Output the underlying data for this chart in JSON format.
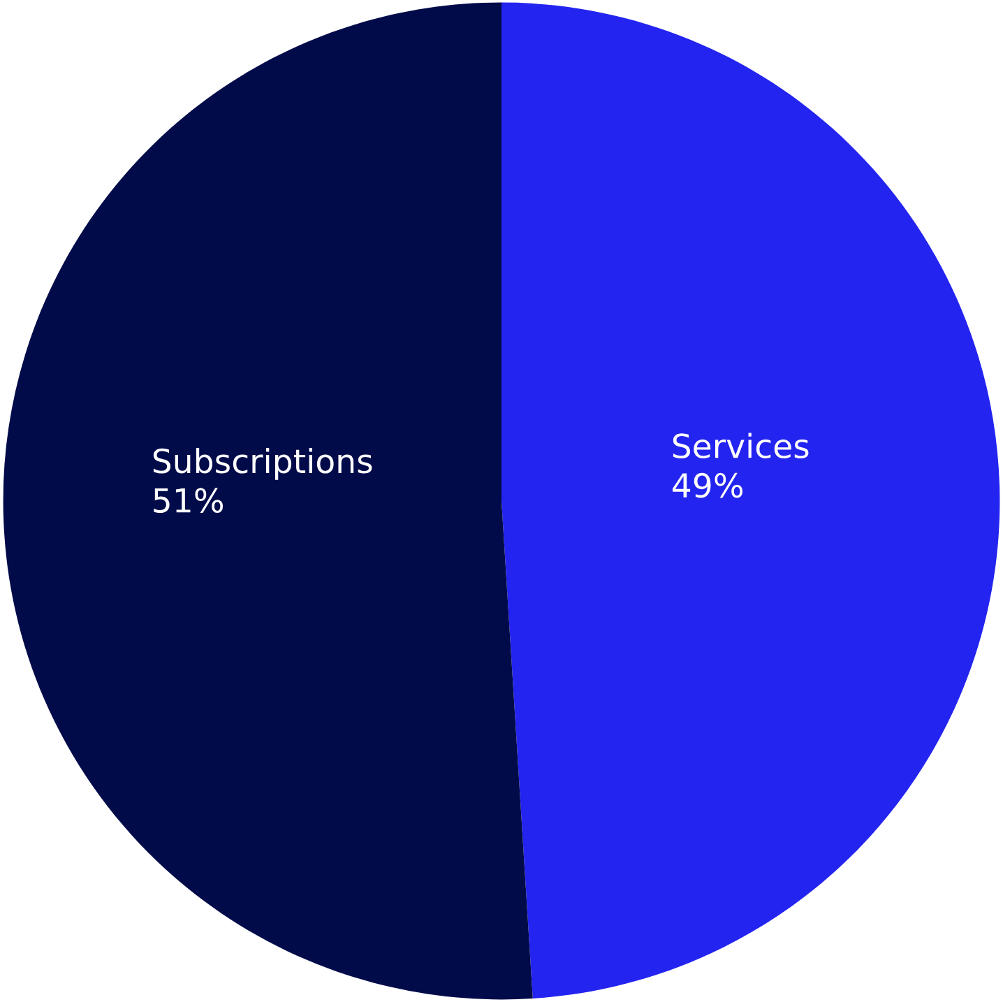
{
  "chart_data": {
    "type": "pie",
    "categories": [
      "Services",
      "Subscriptions"
    ],
    "values": [
      49,
      51
    ],
    "value_labels": [
      "49%",
      "51%"
    ],
    "colors": [
      "#2424f0",
      "#020b4a"
    ],
    "legend": false
  }
}
